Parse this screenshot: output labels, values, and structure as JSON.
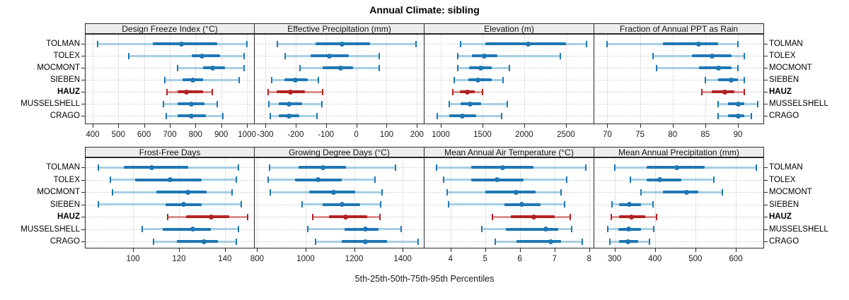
{
  "title": "Annual Climate: sibling",
  "caption": "5th-25th-50th-75th-95th Percentiles",
  "categories": [
    "TOLMAN",
    "TOLEX",
    "MOCMONT",
    "SIEBEN",
    "HAUZ",
    "MUSSELSHELL",
    "CRAGO"
  ],
  "highlight_category": "HAUZ",
  "percentile_labels": [
    "5th",
    "25th",
    "50th",
    "75th",
    "95th"
  ],
  "colors": {
    "series_dark": "#1f77b4",
    "series_light": "#a6cee3",
    "highlight_dark": "#b22222",
    "highlight_light": "#d9918d",
    "strip_bg": "#ededed",
    "grid_line": "#c9c9c9",
    "panel_border": "#2a2a2a"
  },
  "chart_data": [
    {
      "type": "dotplot-percentiles",
      "title": "Design Freeze Index (°C)",
      "row": 0,
      "col": 0,
      "xlim": [
        370,
        1030
      ],
      "ticks": [
        400,
        500,
        600,
        700,
        800,
        900,
        1000
      ],
      "values": [
        [
          420,
          635,
          745,
          885,
          1000
        ],
        [
          540,
          785,
          825,
          895,
          990
        ],
        [
          730,
          830,
          865,
          915,
          990
        ],
        [
          680,
          750,
          790,
          830,
          970
        ],
        [
          690,
          730,
          765,
          830,
          865
        ],
        [
          675,
          730,
          785,
          835,
          885
        ],
        [
          685,
          730,
          785,
          840,
          905
        ]
      ]
    },
    {
      "type": "dotplot-percentiles",
      "title": "Effective Precipitation (mm)",
      "row": 0,
      "col": 1,
      "xlim": [
        -335,
        225
      ],
      "ticks": [
        -300,
        -200,
        -100,
        0,
        100,
        200
      ],
      "values": [
        [
          -260,
          -135,
          -48,
          45,
          198
        ],
        [
          -235,
          -150,
          -90,
          -25,
          75
        ],
        [
          -185,
          -110,
          -52,
          -10,
          75
        ],
        [
          -280,
          -238,
          -200,
          -160,
          -126
        ],
        [
          -291,
          -263,
          -217,
          -170,
          -112
        ],
        [
          -288,
          -255,
          -222,
          -179,
          -114
        ],
        [
          -284,
          -255,
          -222,
          -188,
          -130
        ]
      ]
    },
    {
      "type": "dotplot-percentiles",
      "title": "Elevation (m)",
      "row": 0,
      "col": 2,
      "xlim": [
        805,
        2840
      ],
      "ticks": [
        1000,
        1500,
        2000,
        2500
      ],
      "values": [
        [
          1235,
          1535,
          2050,
          2500,
          2750
        ],
        [
          1200,
          1370,
          1525,
          1680,
          2430
        ],
        [
          1200,
          1340,
          1480,
          1610,
          1820
        ],
        [
          1160,
          1330,
          1445,
          1610,
          1745
        ],
        [
          1140,
          1230,
          1315,
          1410,
          1500
        ],
        [
          1100,
          1240,
          1355,
          1480,
          1795
        ],
        [
          960,
          1105,
          1255,
          1420,
          1725
        ]
      ]
    },
    {
      "type": "dotplot-percentiles",
      "title": "Fraction of Annual PPT as Rain",
      "row": 0,
      "col": 3,
      "xlim": [
        68,
        94
      ],
      "ticks": [
        70,
        75,
        80,
        85,
        90
      ],
      "values": [
        [
          70,
          78.5,
          84,
          87,
          90
        ],
        [
          77,
          83,
          86,
          89,
          91
        ],
        [
          77.5,
          84,
          87,
          89,
          90
        ],
        [
          85,
          87,
          89,
          90,
          91
        ],
        [
          84.5,
          86,
          88,
          89.5,
          91
        ],
        [
          87,
          88.5,
          90,
          91,
          93
        ],
        [
          87,
          88.5,
          90,
          91,
          92
        ]
      ]
    },
    {
      "type": "dotplot-percentiles",
      "title": "Frost-Free Days",
      "row": 1,
      "col": 0,
      "xlim": [
        79,
        153
      ],
      "ticks": [
        100,
        120,
        140
      ],
      "values": [
        [
          85,
          96,
          108,
          124,
          146
        ],
        [
          90,
          101,
          116,
          130,
          145
        ],
        [
          91,
          110,
          124,
          132,
          143
        ],
        [
          85,
          114,
          122,
          130,
          147
        ],
        [
          115,
          123,
          134,
          142,
          150
        ],
        [
          104,
          113,
          126,
          134,
          146
        ],
        [
          109,
          119,
          131,
          137,
          145
        ]
      ]
    },
    {
      "type": "dotplot-percentiles",
      "title": "Growing Degree Days (°C)",
      "row": 1,
      "col": 1,
      "xlim": [
        790,
        1490
      ],
      "ticks": [
        800,
        1000,
        1200,
        1400
      ],
      "values": [
        [
          850,
          970,
          1072,
          1165,
          1370
        ],
        [
          845,
          955,
          1050,
          1150,
          1285
        ],
        [
          855,
          1015,
          1115,
          1205,
          1315
        ],
        [
          985,
          1070,
          1150,
          1225,
          1310
        ],
        [
          1030,
          1095,
          1165,
          1255,
          1305
        ],
        [
          1010,
          1160,
          1245,
          1300,
          1395
        ],
        [
          1040,
          1150,
          1245,
          1335,
          1465
        ]
      ]
    },
    {
      "type": "dotplot-percentiles",
      "title": "Mean Annual Air Temperature (°C)",
      "row": 1,
      "col": 2,
      "xlim": [
        3.25,
        8.15
      ],
      "ticks": [
        4,
        5,
        6,
        7,
        8
      ],
      "values": [
        [
          3.6,
          4.6,
          5.5,
          6.4,
          7.9
        ],
        [
          3.8,
          4.6,
          5.35,
          6.1,
          7.35
        ],
        [
          3.9,
          5.0,
          5.9,
          6.45,
          7.2
        ],
        [
          3.95,
          5.55,
          6.05,
          6.6,
          7.3
        ],
        [
          5.2,
          5.75,
          6.4,
          7.0,
          7.45
        ],
        [
          4.9,
          5.6,
          6.75,
          7.1,
          7.5
        ],
        [
          5.3,
          5.9,
          6.9,
          7.2,
          7.8
        ]
      ]
    },
    {
      "type": "dotplot-percentiles",
      "title": "Mean Annual Precipitation (mm)",
      "row": 1,
      "col": 3,
      "xlim": [
        250,
        670
      ],
      "ticks": [
        300,
        400,
        500,
        600
      ],
      "values": [
        [
          300,
          380,
          453,
          523,
          650
        ],
        [
          340,
          380,
          412,
          465,
          545
        ],
        [
          365,
          420,
          478,
          507,
          567
        ],
        [
          293,
          312,
          337,
          366,
          395
        ],
        [
          292,
          312,
          342,
          376,
          404
        ],
        [
          283,
          309,
          334,
          365,
          397
        ],
        [
          289,
          312,
          333,
          359,
          387
        ]
      ]
    }
  ]
}
